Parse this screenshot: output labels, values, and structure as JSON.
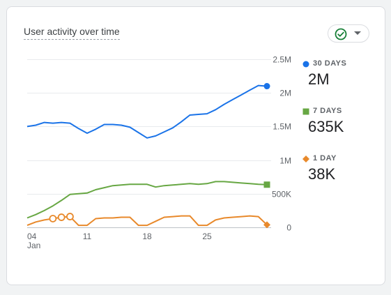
{
  "card": {
    "title": "User activity over time"
  },
  "legend": [
    {
      "label": "30 DAYS",
      "value": "2M",
      "color": "#1a73e8",
      "marker": "circle"
    },
    {
      "label": "7 DAYS",
      "value": "635K",
      "color": "#67a743",
      "marker": "square"
    },
    {
      "label": "1 DAY",
      "value": "38K",
      "color": "#e8892b",
      "marker": "diamond"
    }
  ],
  "icons": {
    "status": "check-circle-icon",
    "caret": "chevron-down-icon"
  },
  "chart_data": {
    "type": "line",
    "x_ticks": [
      {
        "day": 4,
        "label": "04",
        "sublabel": "Jan"
      },
      {
        "day": 11,
        "label": "11"
      },
      {
        "day": 18,
        "label": "18"
      },
      {
        "day": 25,
        "label": "25"
      }
    ],
    "y_ticks": [
      {
        "value": 0,
        "label": "0"
      },
      {
        "value": 500000,
        "label": "500K"
      },
      {
        "value": 1000000,
        "label": "1M"
      },
      {
        "value": 1500000,
        "label": "1.5M"
      },
      {
        "value": 2000000,
        "label": "2M"
      },
      {
        "value": 2500000,
        "label": "2.5M"
      }
    ],
    "x_range": [
      4,
      32
    ],
    "ylim": [
      0,
      2500000
    ],
    "series": [
      {
        "name": "30 DAYS",
        "color": "#1a73e8",
        "marker": "circle",
        "x": [
          4,
          5,
          6,
          7,
          8,
          9,
          10,
          11,
          12,
          13,
          14,
          15,
          16,
          17,
          18,
          19,
          20,
          21,
          22,
          23,
          24,
          25,
          26,
          27,
          28,
          29,
          30,
          31,
          32
        ],
        "values": [
          1500000,
          1520000,
          1560000,
          1550000,
          1560000,
          1550000,
          1470000,
          1400000,
          1460000,
          1530000,
          1530000,
          1520000,
          1490000,
          1410000,
          1330000,
          1360000,
          1420000,
          1480000,
          1570000,
          1670000,
          1680000,
          1690000,
          1750000,
          1830000,
          1900000,
          1970000,
          2040000,
          2110000,
          2100000
        ]
      },
      {
        "name": "7 DAYS",
        "color": "#67a743",
        "marker": "square",
        "x": [
          4,
          5,
          6,
          7,
          8,
          9,
          10,
          11,
          12,
          13,
          14,
          15,
          16,
          17,
          18,
          19,
          20,
          21,
          22,
          23,
          24,
          25,
          26,
          27,
          28,
          29,
          30,
          31,
          32
        ],
        "values": [
          140000,
          190000,
          250000,
          320000,
          400000,
          490000,
          500000,
          510000,
          560000,
          590000,
          620000,
          630000,
          640000,
          640000,
          640000,
          600000,
          620000,
          630000,
          640000,
          650000,
          640000,
          650000,
          680000,
          680000,
          670000,
          660000,
          650000,
          640000,
          635000
        ]
      },
      {
        "name": "1 DAY",
        "color": "#e8892b",
        "marker": "diamond",
        "x": [
          4,
          5,
          6,
          7,
          8,
          9,
          10,
          11,
          12,
          13,
          14,
          15,
          16,
          17,
          18,
          19,
          20,
          21,
          22,
          23,
          24,
          25,
          26,
          27,
          28,
          29,
          30,
          31,
          32
        ],
        "values": [
          30000,
          80000,
          110000,
          130000,
          150000,
          160000,
          30000,
          30000,
          130000,
          140000,
          140000,
          150000,
          150000,
          30000,
          30000,
          90000,
          150000,
          160000,
          170000,
          170000,
          30000,
          30000,
          110000,
          140000,
          150000,
          160000,
          170000,
          160000,
          38000
        ],
        "highlighted_points": [
          7,
          8,
          9
        ]
      }
    ],
    "grid": true
  }
}
